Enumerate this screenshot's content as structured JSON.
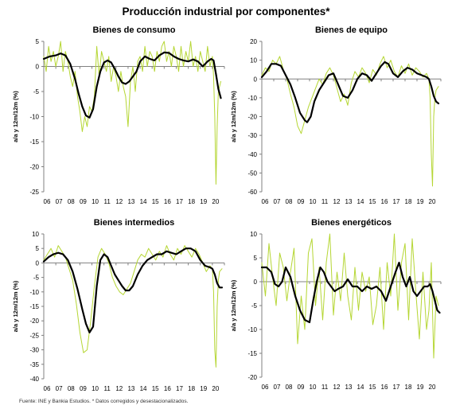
{
  "title": "Producción industrial por componentes*",
  "source": "Fuente: INE y Bankia Estudios. * Datos corregidos y desestacionalizados.",
  "colors": {
    "smooth": "#000000",
    "raw": "#b5d633",
    "axis": "#808080"
  },
  "chart_data": [
    {
      "type": "line",
      "title": "Bienes de consumo",
      "ylabel": "a/a y 12m/12m (%)",
      "xlabel": "",
      "ylim": [
        -25,
        5
      ],
      "yticks": [
        5,
        0,
        -5,
        -10,
        -15,
        -20,
        -25
      ],
      "xlim": [
        2006,
        2021
      ],
      "xtick_labels": [
        "06",
        "07",
        "08",
        "09",
        "10",
        "11",
        "12",
        "13",
        "14",
        "15",
        "16",
        "17",
        "18",
        "19",
        "20"
      ],
      "grid": false,
      "legend": "none",
      "series": [
        {
          "style": "thick-black",
          "x": [
            2006.0,
            2006.5,
            2007.0,
            2007.4,
            2007.8,
            2008.2,
            2008.6,
            2008.9,
            2009.2,
            2009.5,
            2009.8,
            2010.1,
            2010.4,
            2010.7,
            2011.0,
            2011.3,
            2011.6,
            2011.9,
            2012.2,
            2012.5,
            2012.8,
            2013.1,
            2013.4,
            2013.7,
            2014.0,
            2014.4,
            2014.8,
            2015.2,
            2015.6,
            2016.0,
            2016.4,
            2016.8,
            2017.2,
            2017.6,
            2018.0,
            2018.4,
            2018.8,
            2019.2,
            2019.6,
            2019.9,
            2020.1,
            2020.3,
            2020.5,
            2020.7
          ],
          "y": [
            1.5,
            2.0,
            2.2,
            2.6,
            2.2,
            0.5,
            -2.5,
            -5.5,
            -8.0,
            -9.8,
            -10.2,
            -8.5,
            -4.0,
            -1.0,
            0.8,
            1.2,
            0.8,
            -0.5,
            -2.0,
            -3.2,
            -3.5,
            -3.0,
            -2.0,
            -1.0,
            1.0,
            2.0,
            1.5,
            1.2,
            2.2,
            2.8,
            2.7,
            2.0,
            1.5,
            1.2,
            1.0,
            1.4,
            1.0,
            0.0,
            1.0,
            1.5,
            1.2,
            -1.5,
            -4.5,
            -6.3
          ]
        },
        {
          "style": "thin-green",
          "x": [
            2006.0,
            2006.2,
            2006.4,
            2006.6,
            2006.8,
            2007.0,
            2007.2,
            2007.4,
            2007.6,
            2007.8,
            2008.0,
            2008.2,
            2008.4,
            2008.6,
            2008.8,
            2009.0,
            2009.2,
            2009.4,
            2009.6,
            2009.8,
            2010.0,
            2010.2,
            2010.4,
            2010.6,
            2010.8,
            2011.0,
            2011.2,
            2011.4,
            2011.6,
            2011.8,
            2012.0,
            2012.2,
            2012.4,
            2012.6,
            2012.8,
            2013.0,
            2013.2,
            2013.4,
            2013.6,
            2013.8,
            2014.0,
            2014.2,
            2014.4,
            2014.6,
            2014.8,
            2015.0,
            2015.2,
            2015.4,
            2015.6,
            2015.8,
            2016.0,
            2016.2,
            2016.4,
            2016.6,
            2016.8,
            2017.0,
            2017.2,
            2017.4,
            2017.6,
            2017.8,
            2018.0,
            2018.2,
            2018.4,
            2018.6,
            2018.8,
            2019.0,
            2019.2,
            2019.4,
            2019.6,
            2019.8,
            2020.0,
            2020.1,
            2020.2,
            2020.3,
            2020.4,
            2020.5,
            2020.6,
            2020.7
          ],
          "y": [
            2,
            -1,
            4,
            1,
            3,
            0,
            2,
            5,
            -1,
            3,
            1,
            -2,
            -4,
            -1,
            -6,
            -9,
            -13,
            -10,
            -12,
            -8,
            -9,
            -6,
            4,
            -2,
            3,
            1,
            -1,
            2,
            -3,
            0,
            -2,
            -5,
            -1,
            -4,
            -6,
            -12,
            -3,
            0,
            -5,
            1,
            2,
            -1,
            4,
            0,
            3,
            2,
            -1,
            3,
            1,
            4,
            5,
            1,
            3,
            0,
            4,
            2,
            -1,
            4,
            0,
            3,
            1,
            5,
            0,
            2,
            -1,
            3,
            1,
            -1,
            4,
            0,
            2,
            -2,
            -10,
            -23.5,
            -12,
            -5,
            -4,
            -3
          ]
        }
      ]
    },
    {
      "type": "line",
      "title": "Bienes de equipo",
      "ylabel": "a/a y 12m/12m (%)",
      "xlabel": "",
      "ylim": [
        -60,
        20
      ],
      "yticks": [
        20,
        10,
        0,
        -10,
        -20,
        -30,
        -40,
        -50,
        -60
      ],
      "xlim": [
        2006,
        2021
      ],
      "xtick_labels": [
        "06",
        "07",
        "08",
        "09",
        "10",
        "11",
        "12",
        "13",
        "14",
        "15",
        "16",
        "17",
        "18",
        "19",
        "20"
      ],
      "grid": false,
      "legend": "none",
      "series": [
        {
          "style": "thick-black",
          "x": [
            2006.0,
            2006.4,
            2006.8,
            2007.2,
            2007.6,
            2008.0,
            2008.4,
            2008.8,
            2009.2,
            2009.6,
            2009.8,
            2010.1,
            2010.4,
            2010.8,
            2011.2,
            2011.6,
            2012.0,
            2012.4,
            2012.8,
            2013.2,
            2013.6,
            2014.0,
            2014.4,
            2014.8,
            2015.2,
            2015.6,
            2016.0,
            2016.3,
            2016.6,
            2017.0,
            2017.4,
            2017.8,
            2018.2,
            2018.6,
            2019.0,
            2019.4,
            2019.8,
            2020.0,
            2020.2,
            2020.4,
            2020.6,
            2020.8
          ],
          "y": [
            1,
            4,
            8,
            8,
            7,
            2,
            -3,
            -10,
            -18,
            -22,
            -23,
            -20,
            -12,
            -6,
            -2,
            2,
            3,
            -3,
            -9,
            -10,
            -6,
            0,
            3,
            2,
            -1,
            3,
            7,
            9,
            8,
            3,
            1,
            4,
            6,
            5,
            3,
            2,
            1,
            0,
            -4,
            -9,
            -12,
            -13
          ]
        },
        {
          "style": "thin-green",
          "x": [
            2006.0,
            2006.3,
            2006.6,
            2006.9,
            2007.2,
            2007.5,
            2007.8,
            2008.1,
            2008.4,
            2008.7,
            2009.0,
            2009.3,
            2009.6,
            2009.9,
            2010.2,
            2010.5,
            2010.8,
            2011.1,
            2011.4,
            2011.7,
            2012.0,
            2012.3,
            2012.6,
            2012.9,
            2013.2,
            2013.5,
            2013.8,
            2014.1,
            2014.4,
            2014.7,
            2015.0,
            2015.3,
            2015.6,
            2015.9,
            2016.2,
            2016.5,
            2016.8,
            2017.1,
            2017.4,
            2017.7,
            2018.0,
            2018.3,
            2018.6,
            2018.9,
            2019.2,
            2019.5,
            2019.8,
            2020.0,
            2020.1,
            2020.2,
            2020.3,
            2020.4,
            2020.5,
            2020.6,
            2020.8
          ],
          "y": [
            2,
            6,
            4,
            10,
            8,
            12,
            5,
            0,
            -8,
            -15,
            -25,
            -29,
            -22,
            -15,
            -10,
            -5,
            0,
            -3,
            3,
            6,
            2,
            -5,
            -12,
            -8,
            -14,
            -2,
            4,
            1,
            6,
            3,
            -2,
            5,
            2,
            8,
            12,
            6,
            10,
            4,
            1,
            7,
            3,
            8,
            2,
            6,
            4,
            1,
            3,
            0,
            -10,
            -40,
            -57,
            -20,
            -10,
            -6,
            -4
          ]
        }
      ]
    },
    {
      "type": "line",
      "title": "Bienes intermedios",
      "ylabel": "a/a y 12m/12m (%)",
      "xlabel": "",
      "ylim": [
        -40,
        10
      ],
      "yticks": [
        10,
        5,
        0,
        -5,
        -10,
        -15,
        -20,
        -25,
        -30,
        -35,
        -40
      ],
      "xlim": [
        2006,
        2021
      ],
      "xtick_labels": [
        "06",
        "07",
        "08",
        "09",
        "10",
        "11",
        "12",
        "13",
        "14",
        "15",
        "16",
        "17",
        "18",
        "19",
        "20"
      ],
      "grid": false,
      "legend": "none",
      "series": [
        {
          "style": "thick-black",
          "x": [
            2006.0,
            2006.4,
            2006.8,
            2007.2,
            2007.6,
            2008.0,
            2008.4,
            2008.8,
            2009.2,
            2009.5,
            2009.8,
            2010.1,
            2010.4,
            2010.7,
            2011.0,
            2011.3,
            2011.6,
            2011.9,
            2012.2,
            2012.5,
            2012.8,
            2013.1,
            2013.4,
            2013.8,
            2014.2,
            2014.6,
            2015.0,
            2015.4,
            2015.8,
            2016.2,
            2016.6,
            2017.0,
            2017.4,
            2017.8,
            2018.2,
            2018.6,
            2019.0,
            2019.4,
            2019.8,
            2020.0,
            2020.2,
            2020.4,
            2020.6,
            2020.8
          ],
          "y": [
            0.5,
            2,
            3,
            3.5,
            3,
            1,
            -3,
            -9,
            -16,
            -21,
            -24,
            -22,
            -8,
            1,
            3,
            2,
            -1,
            -4,
            -6,
            -8,
            -9.5,
            -9.5,
            -8,
            -4,
            -1,
            1,
            2,
            3,
            3,
            4,
            3.5,
            3,
            4,
            5,
            5,
            4,
            1,
            -1,
            -1.5,
            -2,
            -4,
            -7,
            -8.5,
            -8.5
          ]
        },
        {
          "style": "thin-green",
          "x": [
            2006.0,
            2006.3,
            2006.6,
            2006.9,
            2007.2,
            2007.5,
            2007.8,
            2008.1,
            2008.4,
            2008.7,
            2009.0,
            2009.3,
            2009.6,
            2009.9,
            2010.2,
            2010.5,
            2010.8,
            2011.1,
            2011.4,
            2011.7,
            2012.0,
            2012.3,
            2012.6,
            2012.9,
            2013.2,
            2013.5,
            2013.8,
            2014.1,
            2014.4,
            2014.7,
            2015.0,
            2015.3,
            2015.6,
            2015.9,
            2016.2,
            2016.5,
            2016.8,
            2017.1,
            2017.4,
            2017.7,
            2018.0,
            2018.3,
            2018.6,
            2018.9,
            2019.2,
            2019.5,
            2019.8,
            2020.0,
            2020.1,
            2020.2,
            2020.3,
            2020.4,
            2020.5,
            2020.6,
            2020.8
          ],
          "y": [
            1,
            3,
            5,
            2,
            6,
            4,
            2,
            -2,
            -6,
            -14,
            -24,
            -31,
            -30,
            -20,
            -8,
            2,
            5,
            3,
            0,
            -5,
            -8,
            -10,
            -11,
            -9,
            -7,
            -3,
            1,
            3,
            2,
            5,
            3,
            1,
            4,
            2,
            6,
            3,
            1,
            5,
            3,
            6,
            4,
            2,
            5,
            3,
            0,
            -3,
            -1,
            -2,
            -10,
            -30,
            -36,
            -15,
            -6,
            -3,
            -2
          ]
        }
      ]
    },
    {
      "type": "line",
      "title": "Bienes energéticos",
      "ylabel": "a/a y 12m/12m (%)",
      "xlabel": "",
      "ylim": [
        -20,
        10
      ],
      "yticks": [
        10,
        5,
        0,
        -5,
        -10,
        -15,
        -20
      ],
      "xlim": [
        2006,
        2021
      ],
      "xtick_labels": [
        "06",
        "07",
        "08",
        "09",
        "10",
        "11",
        "12",
        "13",
        "14",
        "15",
        "16",
        "17",
        "18",
        "19",
        "20"
      ],
      "grid": false,
      "legend": "none",
      "series": [
        {
          "style": "thick-black",
          "x": [
            2006.0,
            2006.4,
            2006.8,
            2007.1,
            2007.4,
            2007.7,
            2008.0,
            2008.4,
            2008.8,
            2009.2,
            2009.6,
            2010.0,
            2010.3,
            2010.6,
            2010.9,
            2011.2,
            2011.5,
            2011.8,
            2012.1,
            2012.4,
            2012.8,
            2013.2,
            2013.6,
            2014.0,
            2014.4,
            2014.8,
            2015.2,
            2015.6,
            2016.0,
            2016.4,
            2016.8,
            2017.2,
            2017.5,
            2017.8,
            2018.1,
            2018.4,
            2018.7,
            2019.0,
            2019.3,
            2019.6,
            2019.9,
            2020.1,
            2020.3,
            2020.5,
            2020.7,
            2020.9
          ],
          "y": [
            3,
            3,
            2,
            -0.5,
            -1,
            0,
            3,
            1,
            -3,
            -6,
            -8,
            -8.5,
            -4,
            0,
            3,
            2,
            0,
            -1,
            -2,
            -1.5,
            -1,
            0.5,
            -1,
            -1,
            -2,
            -1,
            -1.5,
            -1,
            -2,
            -4,
            -1,
            2,
            4,
            1,
            -1,
            1,
            -2,
            -3,
            -2,
            -1,
            -1,
            -0.5,
            -2,
            -4,
            -6,
            -6.5
          ]
        },
        {
          "style": "thin-green",
          "x": [
            2006.0,
            2006.3,
            2006.6,
            2006.9,
            2007.2,
            2007.5,
            2007.8,
            2008.1,
            2008.4,
            2008.7,
            2009.0,
            2009.3,
            2009.6,
            2009.9,
            2010.2,
            2010.5,
            2010.8,
            2011.1,
            2011.4,
            2011.7,
            2012.0,
            2012.3,
            2012.6,
            2012.9,
            2013.2,
            2013.5,
            2013.8,
            2014.1,
            2014.4,
            2014.7,
            2015.0,
            2015.3,
            2015.6,
            2015.9,
            2016.2,
            2016.5,
            2016.8,
            2017.1,
            2017.4,
            2017.7,
            2018.0,
            2018.3,
            2018.6,
            2018.9,
            2019.2,
            2019.5,
            2019.8,
            2020.0,
            2020.2,
            2020.4,
            2020.6,
            2020.8
          ],
          "y": [
            4,
            -3,
            8,
            1,
            -5,
            6,
            3,
            -4,
            2,
            7,
            -13,
            -3,
            -10,
            6,
            9,
            -5,
            3,
            -8,
            4,
            10,
            -7,
            2,
            -4,
            6,
            -3,
            -8,
            3,
            -6,
            2,
            -2,
            1,
            -9,
            -5,
            3,
            -10,
            4,
            -3,
            10,
            -6,
            4,
            8,
            -8,
            9,
            -2,
            -12,
            2,
            -10,
            -6,
            4,
            -16,
            -3,
            -5
          ]
        }
      ]
    }
  ]
}
